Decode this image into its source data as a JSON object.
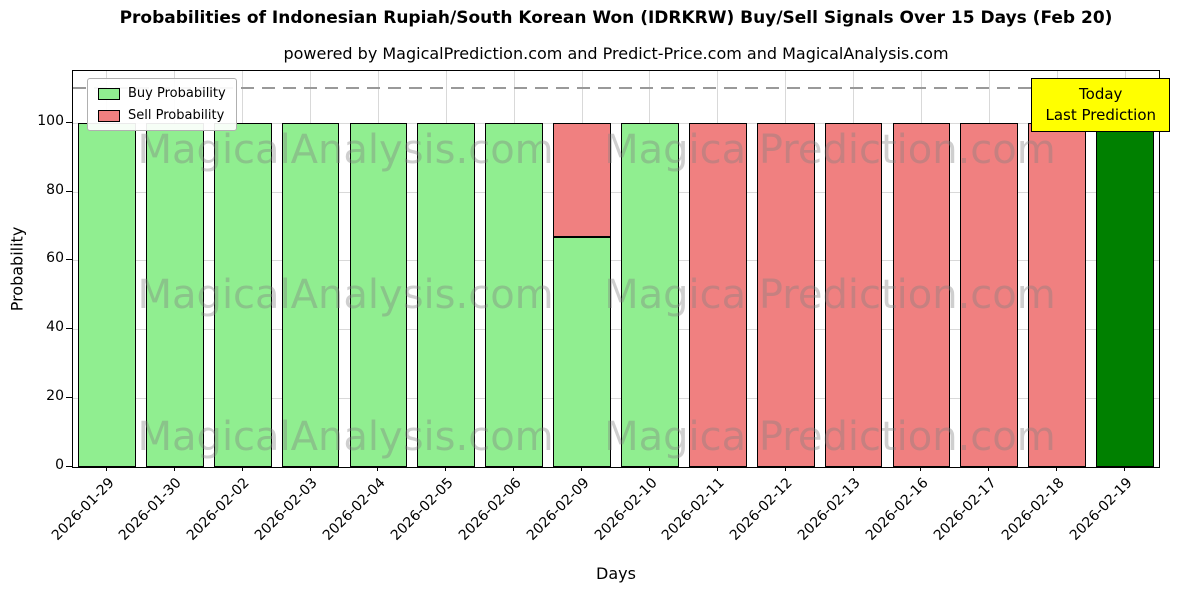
{
  "title": "Probabilities of Indonesian Rupiah/South Korean Won (IDRKRW) Buy/Sell Signals Over 15 Days (Feb 20)",
  "subtitle": "powered by MagicalPrediction.com and Predict-Price.com and MagicalAnalysis.com",
  "annotation": {
    "line1": "Today",
    "line2": "Last Prediction",
    "bg_color": "#ffff00"
  },
  "legend": {
    "items": [
      {
        "label": "Buy Probability",
        "color": "#90ee90"
      },
      {
        "label": "Sell Probability",
        "color": "#f08080"
      }
    ]
  },
  "watermarks": {
    "texts": [
      "MagicalAnalysis.com",
      "Magica Prediction.com"
    ],
    "color": "rgba(128,128,128,0.38)"
  },
  "chart_data": {
    "type": "bar",
    "stacked": true,
    "title": "Probabilities of Indonesian Rupiah/South Korean Won (IDRKRW) Buy/Sell Signals Over 15 Days (Feb 20)",
    "categories": [
      "2026-01-29",
      "2026-01-30",
      "2026-02-02",
      "2026-02-03",
      "2026-02-04",
      "2026-02-05",
      "2026-02-06",
      "2026-02-09",
      "2026-02-10",
      "2026-02-11",
      "2026-02-12",
      "2026-02-13",
      "2026-02-16",
      "2026-02-17",
      "2026-02-18",
      "2026-02-19"
    ],
    "series": [
      {
        "name": "Buy Probability",
        "color": "#90ee90",
        "values": [
          100,
          100,
          100,
          100,
          100,
          100,
          100,
          66.7,
          100,
          0,
          0,
          0,
          0,
          0,
          0,
          100
        ]
      },
      {
        "name": "Sell Probability",
        "color": "#f08080",
        "values": [
          0,
          0,
          0,
          0,
          0,
          0,
          0,
          33.3,
          0,
          100,
          100,
          100,
          100,
          100,
          100,
          0
        ]
      }
    ],
    "today_index": 15,
    "today_color": "#008000",
    "xlabel": "Days",
    "ylabel": "Probability",
    "yticks": [
      0,
      20,
      40,
      60,
      80,
      100
    ],
    "ylim": [
      0,
      115
    ],
    "dashed_line_y": 110,
    "grid": true,
    "legend_position": "upper left"
  }
}
